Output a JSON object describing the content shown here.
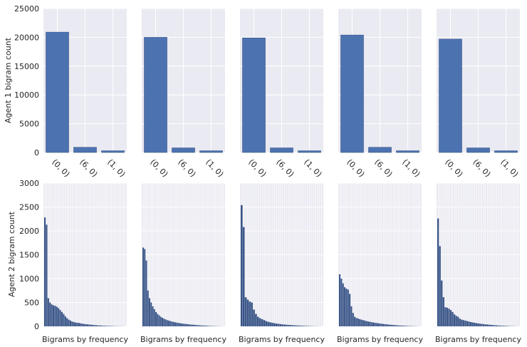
{
  "colors": {
    "background": "#eaeaf2",
    "grid": "#ffffff",
    "bar": "#4c72b0",
    "bar_edge": "#3a5688"
  },
  "labels": {
    "top_ylabel": "Agent 1 bigram count",
    "bottom_ylabel": "Agent 2 bigram count",
    "bottom_xlabel": "Bigrams by frequency"
  },
  "chart_data": [
    {
      "type": "bar",
      "row": "top",
      "panel": 1,
      "categories": [
        "(0, 0)",
        "(6, 0)",
        "(1, 0)"
      ],
      "values": [
        20900,
        900,
        300
      ],
      "ylim": [
        0,
        25000
      ],
      "yticks": [
        0,
        5000,
        10000,
        15000,
        20000,
        25000
      ],
      "ylabel": "Agent 1 bigram count"
    },
    {
      "type": "bar",
      "row": "top",
      "panel": 2,
      "categories": [
        "(0, 0)",
        "(6, 0)",
        "(1, 0)"
      ],
      "values": [
        20000,
        800,
        300
      ],
      "ylim": [
        0,
        25000
      ]
    },
    {
      "type": "bar",
      "row": "top",
      "panel": 3,
      "categories": [
        "(0, 0)",
        "(6, 0)",
        "(1, 0)"
      ],
      "values": [
        19900,
        800,
        300
      ],
      "ylim": [
        0,
        25000
      ]
    },
    {
      "type": "bar",
      "row": "top",
      "panel": 4,
      "categories": [
        "(0, 0)",
        "(6, 0)",
        "(1, 0)"
      ],
      "values": [
        20400,
        900,
        300
      ],
      "ylim": [
        0,
        25000
      ]
    },
    {
      "type": "bar",
      "row": "top",
      "panel": 5,
      "categories": [
        "(0, 0)",
        "(6, 0)",
        "(1, 0)"
      ],
      "values": [
        19700,
        800,
        300
      ],
      "ylim": [
        0,
        25000
      ]
    },
    {
      "type": "bar",
      "row": "bottom",
      "panel": 1,
      "xlabel": "Bigrams by frequency",
      "ylabel": "Agent 2 bigram count",
      "ylim": [
        0,
        3000
      ],
      "yticks": [
        0,
        500,
        1000,
        1500,
        2000,
        2500,
        3000
      ],
      "values": [
        2280,
        2130,
        590,
        500,
        460,
        440,
        430,
        410,
        380,
        340,
        300,
        260,
        210,
        170,
        140,
        120,
        100,
        90,
        80,
        75,
        70,
        62,
        55,
        50,
        45,
        42,
        38,
        34,
        30,
        27,
        24,
        21,
        18,
        16,
        14,
        12,
        10,
        9,
        8,
        7,
        6,
        5,
        4,
        3,
        3,
        2,
        2,
        1
      ]
    },
    {
      "type": "bar",
      "row": "bottom",
      "panel": 2,
      "xlabel": "Bigrams by frequency",
      "ylim": [
        0,
        3000
      ],
      "values": [
        1650,
        1620,
        1380,
        750,
        590,
        500,
        420,
        360,
        300,
        260,
        230,
        200,
        180,
        160,
        145,
        130,
        120,
        110,
        100,
        92,
        85,
        78,
        72,
        66,
        60,
        56,
        52,
        48,
        44,
        40,
        37,
        34,
        31,
        28,
        25,
        22,
        20,
        18,
        16,
        14,
        12,
        10,
        8,
        7,
        6,
        5,
        4,
        3,
        2,
        2,
        1
      ]
    },
    {
      "type": "bar",
      "row": "bottom",
      "panel": 3,
      "xlabel": "Bigrams by frequency",
      "ylim": [
        0,
        3000
      ],
      "values": [
        2540,
        2080,
        610,
        560,
        520,
        500,
        350,
        260,
        200,
        170,
        150,
        130,
        110,
        95,
        85,
        75,
        65,
        58,
        52,
        46,
        41,
        37,
        33,
        30,
        27,
        24,
        21,
        18,
        16,
        14,
        12,
        10,
        8,
        6,
        5,
        4,
        3,
        2,
        2,
        1
      ]
    },
    {
      "type": "bar",
      "row": "bottom",
      "panel": 4,
      "xlabel": "Bigrams by frequency",
      "ylim": [
        0,
        3000
      ],
      "values": [
        1090,
        1000,
        900,
        820,
        790,
        770,
        680,
        420,
        280,
        200,
        175,
        165,
        150,
        140,
        130,
        120,
        110,
        102,
        95,
        88,
        82,
        76,
        70,
        65,
        60,
        55,
        50,
        46,
        42,
        38,
        35,
        32,
        29,
        26,
        23,
        20,
        18,
        16,
        14,
        12,
        10,
        8,
        7,
        6,
        5,
        4,
        3,
        2,
        1
      ]
    },
    {
      "type": "bar",
      "row": "bottom",
      "panel": 5,
      "xlabel": "Bigrams by frequency",
      "ylim": [
        0,
        3000
      ],
      "values": [
        2260,
        1680,
        960,
        610,
        400,
        390,
        370,
        340,
        300,
        250,
        220,
        200,
        160,
        140,
        130,
        120,
        110,
        100,
        90,
        82,
        75,
        68,
        62,
        56,
        51,
        46,
        42,
        38,
        34,
        30,
        27,
        24,
        21,
        18,
        16,
        14,
        12,
        10,
        8,
        6,
        5,
        4,
        3,
        2,
        1
      ]
    }
  ]
}
